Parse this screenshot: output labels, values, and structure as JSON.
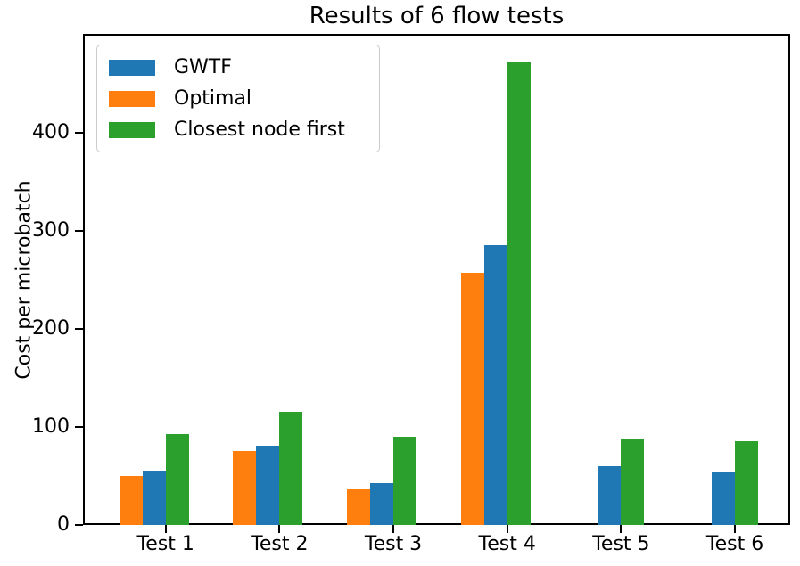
{
  "chart_data": {
    "type": "bar",
    "title": "Results of 6 flow tests",
    "ylabel": "Cost per microbatch",
    "categories": [
      "Test 1",
      "Test 2",
      "Test 3",
      "Test 4",
      "Test 5",
      "Test 6"
    ],
    "series": [
      {
        "name": "GWTF",
        "color": "#1f77b4",
        "values": [
          55,
          81,
          43,
          285,
          60,
          54
        ]
      },
      {
        "name": "Optimal",
        "color": "#ff7f0e",
        "values": [
          50,
          75,
          36,
          257,
          null,
          null
        ]
      },
      {
        "name": "Closest node first",
        "color": "#2ca02c",
        "values": [
          93,
          115,
          90,
          472,
          88,
          85
        ]
      }
    ],
    "yticks": [
      0,
      100,
      200,
      300,
      400
    ],
    "ylim": [
      0,
      500
    ],
    "grid": false,
    "legend_position": "upper left"
  }
}
